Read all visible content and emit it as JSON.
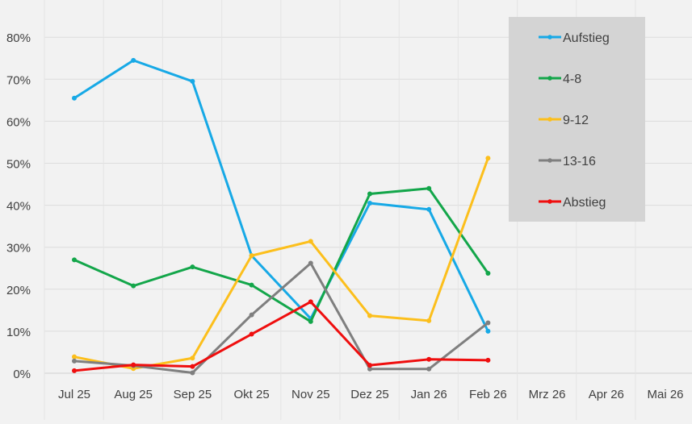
{
  "chart_data": {
    "type": "line",
    "categories": [
      "Jul 25",
      "Aug 25",
      "Sep 25",
      "Okt 25",
      "Nov 25",
      "Dez 25",
      "Jan 26",
      "Feb 26",
      "Mrz 26",
      "Apr 26",
      "Mai 26"
    ],
    "y_ticks": [
      "0%",
      "10%",
      "20%",
      "30%",
      "40%",
      "50%",
      "60%",
      "70%",
      "80%"
    ],
    "ylim": [
      0,
      80
    ],
    "grid": true,
    "legend_position": "top-right",
    "series": [
      {
        "name": "Aufstieg",
        "color": "#17a9e6",
        "values": [
          65.5,
          74.5,
          69.5,
          28,
          13,
          40.5,
          39,
          10,
          null,
          null,
          null
        ]
      },
      {
        "name": "4-8",
        "color": "#13a64a",
        "values": [
          27,
          20.8,
          25.3,
          21,
          12.3,
          42.7,
          44,
          23.8,
          null,
          null,
          null
        ]
      },
      {
        "name": "9-12",
        "color": "#fcbf1c",
        "values": [
          3.9,
          1.1,
          3.6,
          28,
          31.4,
          13.7,
          12.5,
          51.2,
          null,
          null,
          null
        ]
      },
      {
        "name": "13-16",
        "color": "#7f7f7f",
        "values": [
          2.9,
          1.8,
          0.1,
          13.9,
          26.2,
          1,
          1,
          12,
          null,
          null,
          null
        ]
      },
      {
        "name": "Abstieg",
        "color": "#ef0e0e",
        "values": [
          0.6,
          2,
          1.6,
          9.3,
          17,
          1.9,
          3.3,
          3.1,
          null,
          null,
          null
        ]
      }
    ]
  }
}
